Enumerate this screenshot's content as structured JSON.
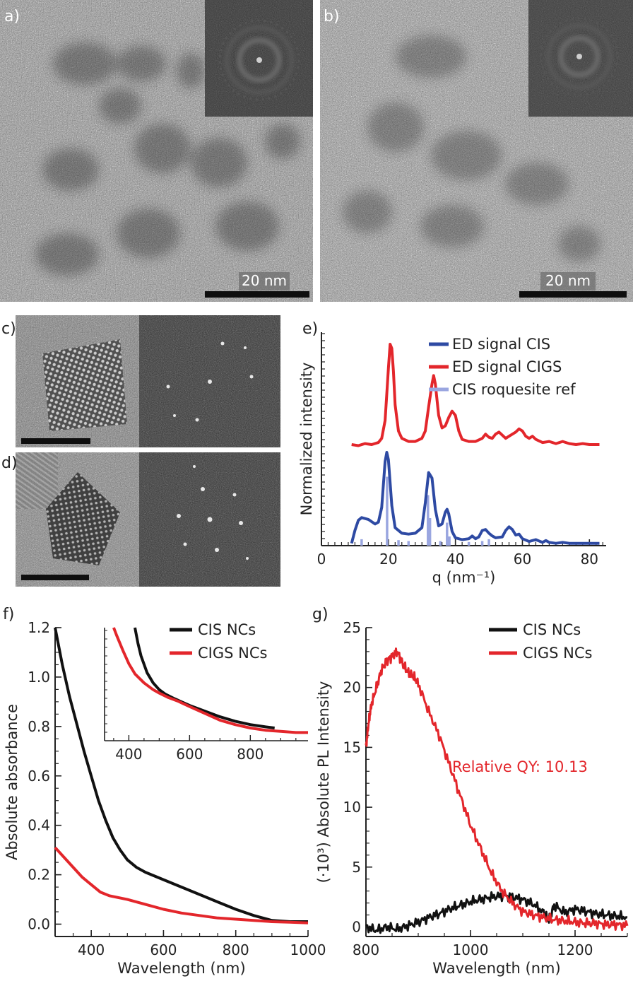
{
  "panels": {
    "a": {
      "label": "a)",
      "scalebar": "20 nm"
    },
    "b": {
      "label": "b)",
      "scalebar": "20 nm"
    },
    "c": {
      "label": "c)"
    },
    "d": {
      "label": "d)"
    },
    "e": {
      "label": "e)"
    },
    "f": {
      "label": "f)"
    },
    "g": {
      "label": "g)"
    }
  },
  "colors": {
    "cis_ed": "#2e4aa3",
    "cigs_ed": "#e3262b",
    "ref": "#9aa6e0",
    "cis_nc": "#111111",
    "cigs_nc": "#e3262b"
  },
  "chart_data": [
    {
      "id": "e",
      "type": "line",
      "xlabel": "q (nm⁻¹)",
      "ylabel": "Normalized intensity",
      "xlim": [
        0,
        85
      ],
      "xticks": [
        0,
        20,
        40,
        60,
        80
      ],
      "legend": "top-right",
      "series": [
        {
          "name": "ED signal CIS",
          "color": "#2e4aa3",
          "x": [
            9,
            10,
            11,
            12,
            14,
            16,
            17,
            18,
            19,
            19.5,
            20,
            21,
            22,
            24,
            26,
            28,
            30,
            31,
            32,
            33,
            34,
            35,
            36,
            37,
            37.5,
            38,
            39,
            40,
            42,
            44,
            45,
            46,
            47,
            48,
            49,
            50,
            51,
            52,
            54,
            55,
            56,
            57,
            58,
            59,
            60,
            62,
            64,
            66,
            67,
            68,
            70,
            72,
            74,
            76,
            78,
            80,
            83
          ],
          "y": [
            0.01,
            0.15,
            0.26,
            0.29,
            0.27,
            0.22,
            0.24,
            0.4,
            0.9,
            1.0,
            0.92,
            0.42,
            0.18,
            0.12,
            0.11,
            0.12,
            0.18,
            0.45,
            0.78,
            0.72,
            0.38,
            0.2,
            0.22,
            0.35,
            0.38,
            0.33,
            0.14,
            0.07,
            0.05,
            0.06,
            0.09,
            0.06,
            0.08,
            0.15,
            0.16,
            0.12,
            0.09,
            0.07,
            0.08,
            0.15,
            0.19,
            0.16,
            0.1,
            0.11,
            0.06,
            0.03,
            0.05,
            0.02,
            0.04,
            0.02,
            0.01,
            0.02,
            0.01,
            0.01,
            0.01,
            0.01,
            0.01
          ]
        },
        {
          "name": "ED signal CIGS",
          "color": "#e3262b",
          "x": [
            9,
            11,
            13,
            15,
            17,
            18,
            19,
            20,
            20.5,
            21,
            21.5,
            22,
            23,
            24,
            26,
            28,
            30,
            31,
            32,
            33,
            33.5,
            34,
            35,
            36,
            37,
            38,
            39,
            40,
            41,
            42,
            44,
            46,
            48,
            49,
            50,
            51,
            52,
            53,
            54,
            55,
            56,
            58,
            59,
            60,
            61,
            62,
            63,
            64,
            66,
            68,
            70,
            72,
            74,
            76,
            78,
            80,
            83
          ],
          "y": [
            0.02,
            0.01,
            0.03,
            0.02,
            0.04,
            0.08,
            0.25,
            0.75,
            0.98,
            0.94,
            0.72,
            0.4,
            0.15,
            0.08,
            0.05,
            0.05,
            0.08,
            0.15,
            0.38,
            0.6,
            0.68,
            0.6,
            0.3,
            0.18,
            0.2,
            0.28,
            0.34,
            0.3,
            0.15,
            0.07,
            0.05,
            0.05,
            0.08,
            0.12,
            0.09,
            0.08,
            0.12,
            0.14,
            0.11,
            0.08,
            0.1,
            0.14,
            0.17,
            0.15,
            0.1,
            0.08,
            0.1,
            0.07,
            0.04,
            0.05,
            0.03,
            0.05,
            0.03,
            0.02,
            0.03,
            0.02,
            0.02
          ]
        },
        {
          "name": "CIS roquesite ref",
          "color": "#9aa6e0",
          "type": "stem",
          "x": [
            12,
            19.6,
            23,
            26,
            31.8,
            32.4,
            35.5,
            37.5,
            38.2,
            44,
            48,
            50
          ],
          "y": [
            0.07,
            0.75,
            0.06,
            0.05,
            0.55,
            0.3,
            0.05,
            0.25,
            0.1,
            0.04,
            0.05,
            0.07
          ]
        }
      ]
    },
    {
      "id": "f",
      "type": "line",
      "xlabel": "Wavelength (nm)",
      "ylabel": "Absolute absorbance",
      "xlim": [
        300,
        1000
      ],
      "ylim": [
        -0.05,
        1.2
      ],
      "xticks": [
        400,
        600,
        800,
        1000
      ],
      "yticks": [
        0.0,
        0.2,
        0.4,
        0.6,
        0.8,
        1.0,
        1.2
      ],
      "legend": "top-right",
      "series": [
        {
          "name": "CIS NCs",
          "color": "#111111",
          "x": [
            300,
            320,
            340,
            360,
            380,
            400,
            420,
            440,
            460,
            480,
            500,
            525,
            550,
            600,
            650,
            700,
            750,
            800,
            850,
            900,
            950,
            1000
          ],
          "y": [
            1.2,
            1.05,
            0.92,
            0.81,
            0.7,
            0.6,
            0.5,
            0.42,
            0.35,
            0.3,
            0.26,
            0.23,
            0.21,
            0.18,
            0.15,
            0.12,
            0.09,
            0.06,
            0.035,
            0.015,
            0.01,
            0.01
          ]
        },
        {
          "name": "CIGS NCs",
          "color": "#e3262b",
          "x": [
            300,
            325,
            350,
            375,
            400,
            425,
            450,
            500,
            550,
            600,
            650,
            700,
            750,
            800,
            850,
            900,
            950,
            1000
          ],
          "y": [
            0.31,
            0.27,
            0.23,
            0.19,
            0.16,
            0.13,
            0.115,
            0.1,
            0.08,
            0.06,
            0.045,
            0.035,
            0.025,
            0.02,
            0.015,
            0.01,
            0.008,
            0.005
          ]
        }
      ],
      "inset": {
        "xlim": [
          320,
          990
        ],
        "xticks": [
          400,
          600,
          800
        ],
        "series": [
          {
            "name": "CIS NCs",
            "color": "#111111",
            "x": [
              420,
              430,
              440,
              460,
              480,
              500,
              520,
              550,
              600,
              650,
              700,
              750,
              800,
              850,
              880
            ],
            "y": [
              1.0,
              0.86,
              0.75,
              0.6,
              0.51,
              0.45,
              0.41,
              0.37,
              0.31,
              0.26,
              0.21,
              0.17,
              0.14,
              0.12,
              0.11
            ]
          },
          {
            "name": "CIGS NCs",
            "color": "#e3262b",
            "x": [
              350,
              360,
              380,
              400,
              420,
              450,
              480,
              500,
              530,
              560,
              600,
              650,
              700,
              750,
              800,
              850,
              900,
              950,
              990
            ],
            "y": [
              1.0,
              0.93,
              0.8,
              0.68,
              0.59,
              0.51,
              0.45,
              0.42,
              0.38,
              0.35,
              0.3,
              0.24,
              0.18,
              0.14,
              0.11,
              0.09,
              0.08,
              0.07,
              0.07
            ]
          }
        ]
      }
    },
    {
      "id": "g",
      "type": "line",
      "xlabel": "Wavelength (nm)",
      "ylabel": "(·10³) Absolute PL Intensity",
      "xlim": [
        800,
        1300
      ],
      "ylim": [
        -0.8,
        25
      ],
      "xticks": [
        800,
        1000,
        1200
      ],
      "yticks": [
        0,
        5,
        10,
        15,
        20,
        25
      ],
      "legend": "top-right",
      "annotation": "Relative QY: 10.13",
      "series": [
        {
          "name": "CIS NCs",
          "color": "#111111",
          "x": [
            800,
            820,
            840,
            860,
            880,
            900,
            920,
            940,
            960,
            980,
            1000,
            1020,
            1040,
            1060,
            1080,
            1100,
            1120,
            1140,
            1150,
            1160,
            1180,
            1200,
            1220,
            1240,
            1260,
            1280,
            1300
          ],
          "y": [
            0,
            -0.3,
            0,
            -0.2,
            0.1,
            0.4,
            0.8,
            1.1,
            1.5,
            1.8,
            2.1,
            2.3,
            2.5,
            2.6,
            2.5,
            2.3,
            1.9,
            1.2,
            0.5,
            1.8,
            1.2,
            1.5,
            1.3,
            1.1,
            1.0,
            0.9,
            0.8
          ]
        },
        {
          "name": "CIGS NCs",
          "color": "#e3262b",
          "x": [
            800,
            805,
            810,
            820,
            830,
            840,
            850,
            860,
            870,
            880,
            890,
            900,
            920,
            940,
            960,
            980,
            1000,
            1020,
            1040,
            1060,
            1080,
            1100,
            1120,
            1140,
            1160,
            1180,
            1200,
            1220,
            1240,
            1260,
            1280,
            1300
          ],
          "y": [
            15,
            17,
            18.5,
            20,
            21.5,
            22.2,
            22.6,
            23,
            22,
            21.3,
            21,
            20.3,
            18,
            16,
            13.5,
            11,
            8.5,
            6.5,
            4.5,
            3,
            2,
            1.3,
            1,
            0.8,
            0.6,
            0.5,
            0.4,
            0.3,
            0.3,
            0.2,
            0.2,
            0.1
          ]
        }
      ]
    }
  ]
}
